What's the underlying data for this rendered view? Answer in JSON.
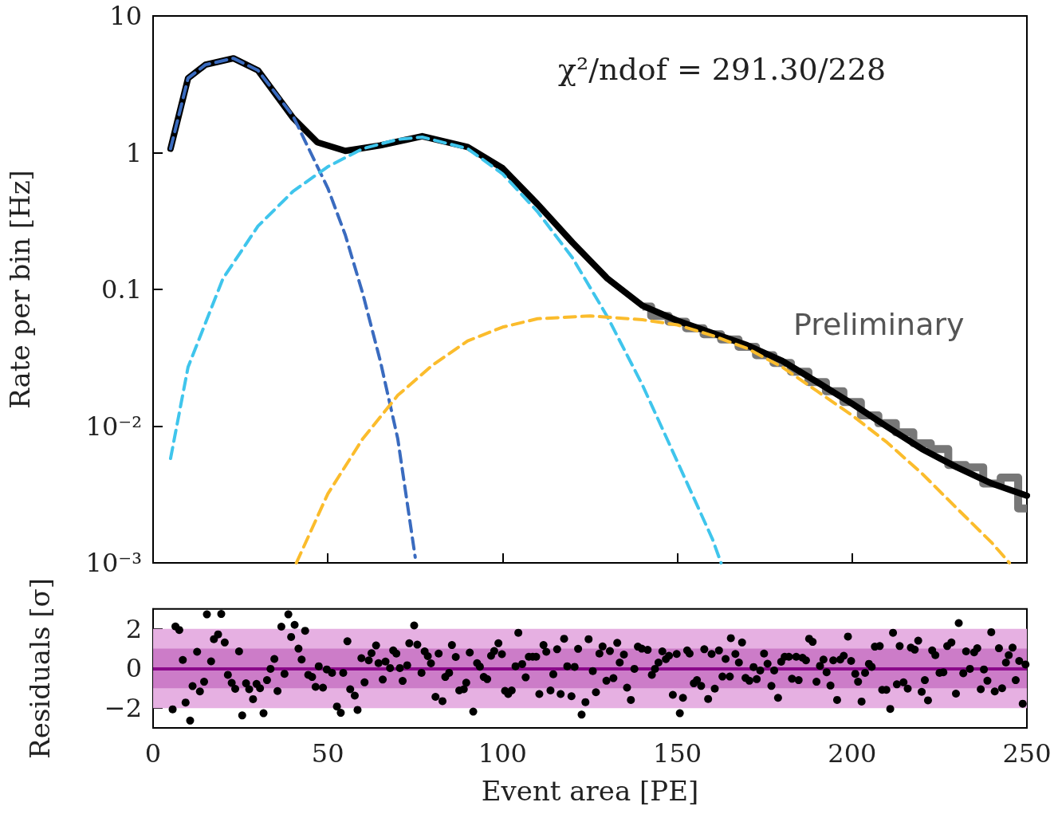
{
  "chart_data": [
    {
      "type": "line",
      "ylabel": "Rate per bin [Hz]",
      "log": "y",
      "xlim": [
        0,
        250
      ],
      "xticks": [
        0,
        50,
        100,
        150,
        200,
        250
      ],
      "ylim": [
        0.001,
        10
      ],
      "yticks": [
        {
          "value": 0.001,
          "label": "10⁻³"
        },
        {
          "value": 0.01,
          "label": "10⁻²"
        },
        0.1,
        1,
        10
      ],
      "tick_labels": "y",
      "annotations": [
        "χ²/ndof = 291.30/228",
        "Preliminary"
      ],
      "series": [
        {
          "type": "step",
          "color": "#777777",
          "x": [
            140,
            145,
            150,
            155,
            160,
            165,
            170,
            175,
            180,
            185,
            190,
            195,
            200,
            205,
            210,
            215,
            220,
            225,
            230,
            235,
            240,
            245,
            250
          ],
          "values": [
            0.075,
            0.064,
            0.058,
            0.052,
            0.047,
            0.043,
            0.038,
            0.033,
            0.029,
            0.025,
            0.021,
            0.018,
            0.015,
            0.012,
            0.0105,
            0.009,
            0.0075,
            0.0068,
            0.0052,
            0.005,
            0.0038,
            0.0042,
            0.0025
          ]
        },
        {
          "color": "#000000",
          "line_style": "solid",
          "x": [
            5,
            10,
            15,
            23,
            30,
            40,
            47,
            55,
            65,
            77,
            90,
            100,
            110,
            120,
            130,
            140,
            150,
            160,
            170,
            180,
            190,
            200,
            210,
            220,
            230,
            240,
            250
          ],
          "values": [
            1.07,
            3.5,
            4.4,
            4.9,
            4.0,
            1.8,
            1.19,
            1.03,
            1.13,
            1.32,
            1.1,
            0.77,
            0.42,
            0.22,
            0.12,
            0.076,
            0.059,
            0.048,
            0.039,
            0.03,
            0.021,
            0.0146,
            0.0099,
            0.0068,
            0.005,
            0.0038,
            0.0031
          ]
        },
        {
          "color": "#3a6bbf",
          "line_style": "dashed",
          "x": [
            5,
            10,
            15,
            23,
            30,
            40,
            50,
            55,
            60,
            65,
            70,
            75
          ],
          "values": [
            1.07,
            3.5,
            4.4,
            4.9,
            4.0,
            1.86,
            0.55,
            0.25,
            0.093,
            0.03,
            0.0081,
            0.0011
          ]
        },
        {
          "color": "#3fc5ec",
          "line_style": "dashed",
          "x": [
            5,
            10,
            20,
            30,
            40,
            50,
            60,
            70,
            77,
            90,
            100,
            110,
            120,
            130,
            140,
            150,
            160,
            162.5
          ],
          "values": [
            0.0058,
            0.027,
            0.12,
            0.29,
            0.52,
            0.79,
            1.07,
            1.25,
            1.3,
            1.07,
            0.7,
            0.37,
            0.17,
            0.063,
            0.02,
            0.0055,
            0.0015,
            0.001
          ]
        },
        {
          "color": "#fbbc2c",
          "line_style": "dashed",
          "x": [
            41,
            50,
            60,
            70,
            80,
            90,
            100,
            110,
            125,
            140,
            150,
            160,
            170,
            180,
            190,
            200,
            210,
            220,
            230,
            240,
            245
          ],
          "values": [
            0.001,
            0.0032,
            0.0081,
            0.0168,
            0.028,
            0.042,
            0.053,
            0.061,
            0.064,
            0.06,
            0.055,
            0.046,
            0.037,
            0.027,
            0.018,
            0.012,
            0.0076,
            0.0045,
            0.0025,
            0.0014,
            0.001
          ]
        }
      ]
    },
    {
      "type": "scatter",
      "xlabel": "Event area [PE]",
      "ylabel": "Residuals [σ]",
      "marker": "circle",
      "xlim": [
        0,
        250
      ],
      "xticks": [
        0,
        50,
        100,
        150,
        200,
        250
      ],
      "ylim": [
        -3,
        3
      ],
      "yticks": [
        {
          "value": -2,
          "label": "−2"
        },
        0,
        2
      ],
      "bands": [
        {
          "axis": "y",
          "from": -2,
          "to": 2,
          "color": "#e6b0e2"
        },
        {
          "axis": "y",
          "from": -1,
          "to": 1,
          "color": "#cc7cc8"
        }
      ],
      "ref_lines": [
        {
          "axis": "y",
          "value": 0,
          "color": "#8a0a8a"
        }
      ],
      "series": [
        {
          "color": "#000000",
          "x": [
            5.6,
            6.4,
            7.5,
            8.5,
            9.3,
            10.6,
            11.3,
            12.6,
            13.4,
            14.6,
            15.4,
            16.6,
            17.4,
            18.6,
            19.5,
            20.5,
            21.4,
            22.5,
            23.5,
            24.6,
            25.5,
            26.6,
            27.5,
            28.6,
            29.6,
            30.6,
            31.6,
            32.6,
            33.6,
            34.7,
            35.6,
            36.7,
            37.6,
            38.7,
            39.5,
            40.5,
            41.6,
            42.5,
            43.5,
            44.4,
            45.5,
            46.5,
            47.4,
            48.6,
            49.7,
            51.2,
            52.6,
            53.7,
            54.4,
            55.6,
            56.4,
            57.7,
            58.5,
            59.6,
            60.5,
            61.7,
            62.5,
            63.8,
            64.5,
            65.7,
            66.5,
            67.8,
            68.7,
            69.6,
            70.6,
            71.4,
            72.7,
            73.3,
            74.7,
            75.6,
            76.8,
            77.7,
            78.6,
            79.5,
            80.8,
            81.7,
            82.8,
            83.6,
            84.7,
            85.5,
            86.6,
            87.6,
            88.9,
            89.6,
            90.6,
            91.6,
            92.7,
            93.5,
            94.6,
            95.6,
            96.7,
            97.6,
            98.8,
            99.8,
            100.7,
            101.6,
            102.6,
            103.7,
            104.5,
            105.6,
            106.6,
            107.5,
            108.6,
            109.6,
            110.5,
            111.7,
            112.5,
            113.7,
            114.5,
            115.6,
            116.6,
            117.6,
            118.5,
            119.7,
            120.6,
            121.6,
            122.6,
            123.7,
            124.6,
            125.8,
            126.7,
            127.7,
            128.6,
            129.7,
            130.7,
            131.7,
            132.8,
            133.5,
            134.7,
            135.6,
            136.7,
            137.7,
            138.7,
            139.8,
            141.5,
            142.7,
            143.6,
            144.6,
            145.7,
            146.7,
            147.6,
            148.7,
            149.8,
            150.7,
            151.6,
            152.8,
            153.5,
            154.7,
            155.6,
            156.8,
            157.7,
            158.8,
            159.8,
            160.7,
            161.9,
            162.9,
            163.8,
            165,
            165.3,
            166.6,
            167.6,
            168.5,
            169.5,
            170.6,
            171.8,
            172.7,
            173.7,
            174.8,
            175.8,
            176.9,
            177.7,
            178.8,
            179.7,
            180.7,
            181.9,
            182.8,
            184,
            184.7,
            185.8,
            186.8,
            187.7,
            188.7,
            189.8,
            190.8,
            191.8,
            192.7,
            193.8,
            194.6,
            195.7,
            196.6,
            197.6,
            198.8,
            199.7,
            200.9,
            201.7,
            202.7,
            203.7,
            204.8,
            205.6,
            206.5,
            207.9,
            208.6,
            209.8,
            210.9,
            211.7,
            212.8,
            213.6,
            214.7,
            215.9,
            216.8,
            217.9,
            218.9,
            219.9,
            220.8,
            221.7,
            222.9,
            223.8,
            225,
            226.1,
            227.2,
            228.4,
            229.7,
            230.5,
            231.8,
            232.6,
            233.7,
            234.9,
            235.8,
            236.8,
            237.7,
            238.7,
            239.8,
            240.8,
            242,
            242.9,
            244,
            244.8,
            245.9,
            246.8,
            247.8,
            248.8,
            249.6
          ],
          "values": [
            -2.06,
            2.12,
            1.94,
            0.43,
            -1.72,
            -2.63,
            -0.89,
            0.84,
            -1.16,
            -0.67,
            2.73,
            0.36,
            1.48,
            1.72,
            2.75,
            1.31,
            -0.32,
            -0.73,
            -1.03,
            0.86,
            -2.37,
            -0.75,
            -1.05,
            -1.55,
            -0.78,
            -1.0,
            -2.26,
            -0.59,
            -0.02,
            0.48,
            -1.14,
            2.11,
            -0.27,
            2.73,
            1.59,
            2.2,
            1.0,
            0.45,
            1.9,
            -0.32,
            -0.43,
            -0.93,
            0.11,
            -0.97,
            -0.05,
            -0.22,
            -1.92,
            -2.24,
            -0.22,
            1.37,
            -1.05,
            -1.37,
            -2.09,
            0.52,
            -0.7,
            0.41,
            0.77,
            1.16,
            0.27,
            -0.56,
            0.35,
            0.02,
            0.91,
            0.75,
            0.02,
            -0.63,
            0.16,
            1.27,
            2.17,
            1.2,
            -0.22,
            0.86,
            0.62,
            0.26,
            -1.43,
            0.75,
            -1.65,
            -0.43,
            -0.22,
            1.18,
            0.58,
            -1.11,
            -1.05,
            -0.72,
            0.8,
            -2.18,
            0.27,
            0.09,
            -0.43,
            -0.54,
            0.64,
            0.88,
            1.27,
            0.72,
            -1.13,
            -1.29,
            -1.11,
            0.11,
            1.8,
            0.22,
            -0.45,
            0.59,
            0.59,
            0.59,
            -1.29,
            1.18,
            0.84,
            -1.11,
            -0.29,
            0.97,
            -1.29,
            1.5,
            0.11,
            -1.4,
            0.08,
            0.99,
            -2.33,
            -1.7,
            1.48,
            -0.13,
            -1.2,
            0.75,
            1.11,
            -0.62,
            0.88,
            -0.49,
            1.29,
            0.3,
            0.7,
            -0.97,
            -1.59,
            -0.02,
            1.1,
            1.0,
            0.94,
            -0.32,
            -0.02,
            0.3,
            0.86,
            0.47,
            0.64,
            -1.33,
            0.73,
            -2.26,
            -1.48,
            0.91,
            0.75,
            -0.75,
            -0.59,
            -0.88,
            0.97,
            -1.54,
            0.73,
            -1.02,
            0.91,
            -0.41,
            0.48,
            -0.41,
            1.53,
            0.73,
            0.3,
            1.31,
            -0.48,
            -0.62,
            0.07,
            -0.54,
            -0.1,
            0.75,
            0.24,
            -0.88,
            -0.1,
            -1.48,
            0.34,
            0.59,
            0.59,
            -0.52,
            0.59,
            -0.59,
            0.54,
            0.41,
            1.5,
            1.34,
            -0.67,
            0.13,
            0.45,
            -0.19,
            -0.86,
            0.41,
            -1.59,
            0.45,
            0.64,
            1.61,
            0.38,
            -0.27,
            -0.67,
            -1.67,
            -0.22,
            0.23,
            0.08,
            1.1,
            1.13,
            -1.08,
            -1.08,
            -2.04,
            1.8,
            -0.8,
            1.13,
            -0.7,
            -1.02,
            1.05,
            0.95,
            1.4,
            -1.18,
            -0.59,
            -1.61,
            0.91,
            0.67,
            -0.22,
            -0.19,
            1.13,
            1.31,
            -1.27,
            2.29,
            -0.24,
            0.86,
            -0.02,
            0.81,
            1.02,
            -1.05,
            -0.05,
            -0.62,
            1.83,
            -1.16,
            1.02,
            -1.0,
            0.3,
            0.67,
            1.05,
            -0.59,
            0.38,
            -1.78,
            0.2
          ]
        }
      ]
    }
  ]
}
